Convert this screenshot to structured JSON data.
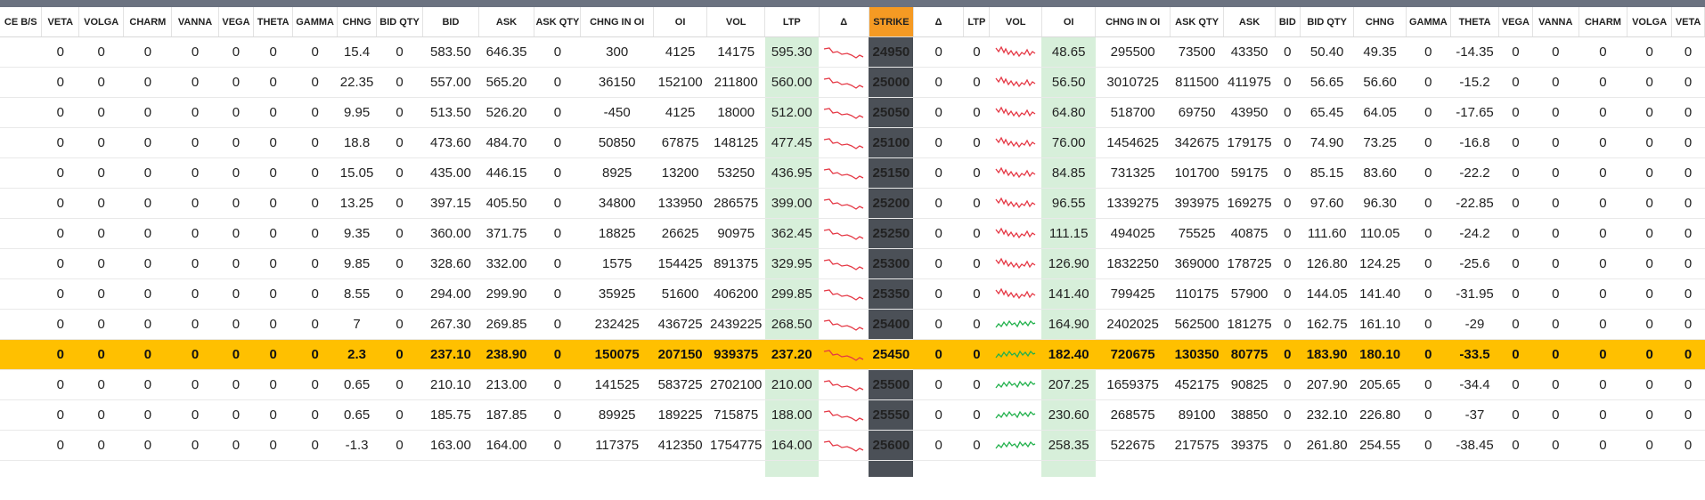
{
  "columns": [
    "CE B/S",
    "VETA",
    "VOLGA",
    "CHARM",
    "VANNA",
    "VEGA",
    "THETA",
    "GAMMA",
    "CHNG",
    "BID QTY",
    "BID",
    "ASK",
    "ASK QTY",
    "CHNG IN OI",
    "OI",
    "VOL",
    "LTP",
    "Δ",
    "STRIKE",
    "Δ",
    "LTP",
    "VOL",
    "OI",
    "CHNG IN OI",
    "ASK QTY",
    "ASK",
    "BID",
    "BID QTY",
    "CHNG",
    "GAMMA",
    "THETA",
    "VEGA",
    "VANNA",
    "CHARM",
    "VOLGA",
    "VETA"
  ],
  "colors": {
    "positive": "#1e8a3a",
    "negative": "#e53845",
    "atm_row": "#ffc000",
    "strike_header": "#f59a23",
    "strike_cell": "#4b5057",
    "ltp_highlight": "#d7efda",
    "spark_red": "#e53845",
    "spark_green": "#22b14c"
  },
  "rows": [
    {
      "strike": "24950",
      "atm": false,
      "ce": {
        "veta": "0",
        "volga": "0",
        "charm": "0",
        "vanna": "0",
        "vega": "0",
        "theta": "0",
        "gamma": "0",
        "chng": "15.4",
        "bid_qty": "0",
        "bid": "583.50",
        "ask": "646.35",
        "ask_qty": "0",
        "chng_oi": "300",
        "oi": "4125",
        "vol": "14175",
        "ltp": "595.30",
        "delta": "0",
        "trend": "down"
      },
      "pe": {
        "delta": "0",
        "ltp": "0",
        "trend": "down",
        "oi": "48.65",
        "chng_oi": "295500",
        "ask_qty": "73500",
        "ask": "43350",
        "bid": "0",
        "bid_qty": "50.40",
        "chng": "49.35",
        "gamma": "0",
        "theta": "-14.35",
        "vega": "0",
        "vanna": "0",
        "charm": "0",
        "volga": "0",
        "veta": "0"
      }
    },
    {
      "strike": "25000",
      "atm": false,
      "ce": {
        "veta": "0",
        "volga": "0",
        "charm": "0",
        "vanna": "0",
        "vega": "0",
        "theta": "0",
        "gamma": "0",
        "chng": "22.35",
        "bid_qty": "0",
        "bid": "557.00",
        "ask": "565.20",
        "ask_qty": "0",
        "chng_oi": "36150",
        "oi": "152100",
        "vol": "211800",
        "ltp": "560.00",
        "delta": "0",
        "trend": "down"
      },
      "pe": {
        "delta": "0",
        "ltp": "0",
        "trend": "down",
        "oi": "56.50",
        "chng_oi": "3010725",
        "ask_qty": "811500",
        "ask": "411975",
        "bid": "0",
        "bid_qty": "56.65",
        "chng": "56.60",
        "gamma": "0",
        "theta": "-15.2",
        "vega": "0",
        "vanna": "0",
        "charm": "0",
        "volga": "0",
        "veta": "0"
      }
    },
    {
      "strike": "25050",
      "atm": false,
      "ce": {
        "veta": "0",
        "volga": "0",
        "charm": "0",
        "vanna": "0",
        "vega": "0",
        "theta": "0",
        "gamma": "0",
        "chng": "9.95",
        "bid_qty": "0",
        "bid": "513.50",
        "ask": "526.20",
        "ask_qty": "0",
        "chng_oi": "-450",
        "oi": "4125",
        "vol": "18000",
        "ltp": "512.00",
        "delta": "0",
        "trend": "down"
      },
      "pe": {
        "delta": "0",
        "ltp": "0",
        "trend": "down",
        "oi": "64.80",
        "chng_oi": "518700",
        "ask_qty": "69750",
        "ask": "43950",
        "bid": "0",
        "bid_qty": "65.45",
        "chng": "64.05",
        "gamma": "0",
        "theta": "-17.65",
        "vega": "0",
        "vanna": "0",
        "charm": "0",
        "volga": "0",
        "veta": "0"
      }
    },
    {
      "strike": "25100",
      "atm": false,
      "ce": {
        "veta": "0",
        "volga": "0",
        "charm": "0",
        "vanna": "0",
        "vega": "0",
        "theta": "0",
        "gamma": "0",
        "chng": "18.8",
        "bid_qty": "0",
        "bid": "473.60",
        "ask": "484.70",
        "ask_qty": "0",
        "chng_oi": "50850",
        "oi": "67875",
        "vol": "148125",
        "ltp": "477.45",
        "delta": "0",
        "trend": "down"
      },
      "pe": {
        "delta": "0",
        "ltp": "0",
        "trend": "down",
        "oi": "76.00",
        "chng_oi": "1454625",
        "ask_qty": "342675",
        "ask": "179175",
        "bid": "0",
        "bid_qty": "74.90",
        "chng": "73.25",
        "gamma": "0",
        "theta": "-16.8",
        "vega": "0",
        "vanna": "0",
        "charm": "0",
        "volga": "0",
        "veta": "0"
      }
    },
    {
      "strike": "25150",
      "atm": false,
      "ce": {
        "veta": "0",
        "volga": "0",
        "charm": "0",
        "vanna": "0",
        "vega": "0",
        "theta": "0",
        "gamma": "0",
        "chng": "15.05",
        "bid_qty": "0",
        "bid": "435.00",
        "ask": "446.15",
        "ask_qty": "0",
        "chng_oi": "8925",
        "oi": "13200",
        "vol": "53250",
        "ltp": "436.95",
        "delta": "0",
        "trend": "down"
      },
      "pe": {
        "delta": "0",
        "ltp": "0",
        "trend": "down",
        "oi": "84.85",
        "chng_oi": "731325",
        "ask_qty": "101700",
        "ask": "59175",
        "bid": "0",
        "bid_qty": "85.15",
        "chng": "83.60",
        "gamma": "0",
        "theta": "-22.2",
        "vega": "0",
        "vanna": "0",
        "charm": "0",
        "volga": "0",
        "veta": "0"
      }
    },
    {
      "strike": "25200",
      "atm": false,
      "ce": {
        "veta": "0",
        "volga": "0",
        "charm": "0",
        "vanna": "0",
        "vega": "0",
        "theta": "0",
        "gamma": "0",
        "chng": "13.25",
        "bid_qty": "0",
        "bid": "397.15",
        "ask": "405.50",
        "ask_qty": "0",
        "chng_oi": "34800",
        "oi": "133950",
        "vol": "286575",
        "ltp": "399.00",
        "delta": "0",
        "trend": "down"
      },
      "pe": {
        "delta": "0",
        "ltp": "0",
        "trend": "down",
        "oi": "96.55",
        "chng_oi": "1339275",
        "ask_qty": "393975",
        "ask": "169275",
        "bid": "0",
        "bid_qty": "97.60",
        "chng": "96.30",
        "gamma": "0",
        "theta": "-22.85",
        "vega": "0",
        "vanna": "0",
        "charm": "0",
        "volga": "0",
        "veta": "0"
      }
    },
    {
      "strike": "25250",
      "atm": false,
      "ce": {
        "veta": "0",
        "volga": "0",
        "charm": "0",
        "vanna": "0",
        "vega": "0",
        "theta": "0",
        "gamma": "0",
        "chng": "9.35",
        "bid_qty": "0",
        "bid": "360.00",
        "ask": "371.75",
        "ask_qty": "0",
        "chng_oi": "18825",
        "oi": "26625",
        "vol": "90975",
        "ltp": "362.45",
        "delta": "0",
        "trend": "down"
      },
      "pe": {
        "delta": "0",
        "ltp": "0",
        "trend": "down",
        "oi": "111.15",
        "chng_oi": "494025",
        "ask_qty": "75525",
        "ask": "40875",
        "bid": "0",
        "bid_qty": "111.60",
        "chng": "110.05",
        "gamma": "0",
        "theta": "-24.2",
        "vega": "0",
        "vanna": "0",
        "charm": "0",
        "volga": "0",
        "veta": "0"
      }
    },
    {
      "strike": "25300",
      "atm": false,
      "ce": {
        "veta": "0",
        "volga": "0",
        "charm": "0",
        "vanna": "0",
        "vega": "0",
        "theta": "0",
        "gamma": "0",
        "chng": "9.85",
        "bid_qty": "0",
        "bid": "328.60",
        "ask": "332.00",
        "ask_qty": "0",
        "chng_oi": "1575",
        "oi": "154425",
        "vol": "891375",
        "ltp": "329.95",
        "delta": "0",
        "trend": "down"
      },
      "pe": {
        "delta": "0",
        "ltp": "0",
        "trend": "down",
        "oi": "126.90",
        "chng_oi": "1832250",
        "ask_qty": "369000",
        "ask": "178725",
        "bid": "0",
        "bid_qty": "126.80",
        "chng": "124.25",
        "gamma": "0",
        "theta": "-25.6",
        "vega": "0",
        "vanna": "0",
        "charm": "0",
        "volga": "0",
        "veta": "0"
      }
    },
    {
      "strike": "25350",
      "atm": false,
      "ce": {
        "veta": "0",
        "volga": "0",
        "charm": "0",
        "vanna": "0",
        "vega": "0",
        "theta": "0",
        "gamma": "0",
        "chng": "8.55",
        "bid_qty": "0",
        "bid": "294.00",
        "ask": "299.90",
        "ask_qty": "0",
        "chng_oi": "35925",
        "oi": "51600",
        "vol": "406200",
        "ltp": "299.85",
        "delta": "0",
        "trend": "down"
      },
      "pe": {
        "delta": "0",
        "ltp": "0",
        "trend": "down",
        "oi": "141.40",
        "chng_oi": "799425",
        "ask_qty": "110175",
        "ask": "57900",
        "bid": "0",
        "bid_qty": "144.05",
        "chng": "141.40",
        "gamma": "0",
        "theta": "-31.95",
        "vega": "0",
        "vanna": "0",
        "charm": "0",
        "volga": "0",
        "veta": "0"
      }
    },
    {
      "strike": "25400",
      "atm": false,
      "ce": {
        "veta": "0",
        "volga": "0",
        "charm": "0",
        "vanna": "0",
        "vega": "0",
        "theta": "0",
        "gamma": "0",
        "chng": "7",
        "bid_qty": "0",
        "bid": "267.30",
        "ask": "269.85",
        "ask_qty": "0",
        "chng_oi": "232425",
        "oi": "436725",
        "vol": "2439225",
        "ltp": "268.50",
        "delta": "0",
        "trend": "down"
      },
      "pe": {
        "delta": "0",
        "ltp": "0",
        "trend": "up",
        "oi": "164.90",
        "chng_oi": "2402025",
        "ask_qty": "562500",
        "ask": "181275",
        "bid": "0",
        "bid_qty": "162.75",
        "chng": "161.10",
        "gamma": "0",
        "theta": "-29",
        "vega": "0",
        "vanna": "0",
        "charm": "0",
        "volga": "0",
        "veta": "0"
      }
    },
    {
      "strike": "25450",
      "atm": true,
      "ce": {
        "veta": "0",
        "volga": "0",
        "charm": "0",
        "vanna": "0",
        "vega": "0",
        "theta": "0",
        "gamma": "0",
        "chng": "2.3",
        "bid_qty": "0",
        "bid": "237.10",
        "ask": "238.90",
        "ask_qty": "0",
        "chng_oi": "150075",
        "oi": "207150",
        "vol": "939375",
        "ltp": "237.20",
        "delta": "0",
        "trend": "down"
      },
      "pe": {
        "delta": "0",
        "ltp": "0",
        "trend": "up",
        "oi": "182.40",
        "chng_oi": "720675",
        "ask_qty": "130350",
        "ask": "80775",
        "bid": "0",
        "bid_qty": "183.90",
        "chng": "180.10",
        "gamma": "0",
        "theta": "-33.5",
        "vega": "0",
        "vanna": "0",
        "charm": "0",
        "volga": "0",
        "veta": "0"
      }
    },
    {
      "strike": "25500",
      "atm": false,
      "ce": {
        "veta": "0",
        "volga": "0",
        "charm": "0",
        "vanna": "0",
        "vega": "0",
        "theta": "0",
        "gamma": "0",
        "chng": "0.65",
        "bid_qty": "0",
        "bid": "210.10",
        "ask": "213.00",
        "ask_qty": "0",
        "chng_oi": "141525",
        "oi": "583725",
        "vol": "2702100",
        "ltp": "210.00",
        "delta": "0",
        "trend": "down"
      },
      "pe": {
        "delta": "0",
        "ltp": "0",
        "trend": "up",
        "oi": "207.25",
        "chng_oi": "1659375",
        "ask_qty": "452175",
        "ask": "90825",
        "bid": "0",
        "bid_qty": "207.90",
        "chng": "205.65",
        "gamma": "0",
        "theta": "-34.4",
        "vega": "0",
        "vanna": "0",
        "charm": "0",
        "volga": "0",
        "veta": "0"
      }
    },
    {
      "strike": "25550",
      "atm": false,
      "ce": {
        "veta": "0",
        "volga": "0",
        "charm": "0",
        "vanna": "0",
        "vega": "0",
        "theta": "0",
        "gamma": "0",
        "chng": "0.65",
        "bid_qty": "0",
        "bid": "185.75",
        "ask": "187.85",
        "ask_qty": "0",
        "chng_oi": "89925",
        "oi": "189225",
        "vol": "715875",
        "ltp": "188.00",
        "delta": "0",
        "trend": "down"
      },
      "pe": {
        "delta": "0",
        "ltp": "0",
        "trend": "up",
        "oi": "230.60",
        "chng_oi": "268575",
        "ask_qty": "89100",
        "ask": "38850",
        "bid": "0",
        "bid_qty": "232.10",
        "chng": "226.80",
        "gamma": "0",
        "theta": "-37",
        "vega": "0",
        "vanna": "0",
        "charm": "0",
        "volga": "0",
        "veta": "0"
      }
    },
    {
      "strike": "25600",
      "atm": false,
      "ce": {
        "veta": "0",
        "volga": "0",
        "charm": "0",
        "vanna": "0",
        "vega": "0",
        "theta": "0",
        "gamma": "0",
        "chng": "-1.3",
        "bid_qty": "0",
        "bid": "163.00",
        "ask": "164.00",
        "ask_qty": "0",
        "chng_oi": "117375",
        "oi": "412350",
        "vol": "1754775",
        "ltp": "164.00",
        "delta": "0",
        "trend": "down"
      },
      "pe": {
        "delta": "0",
        "ltp": "0",
        "trend": "up",
        "oi": "258.35",
        "chng_oi": "522675",
        "ask_qty": "217575",
        "ask": "39375",
        "bid": "0",
        "bid_qty": "261.80",
        "chng": "254.55",
        "gamma": "0",
        "theta": "-38.45",
        "vega": "0",
        "vanna": "0",
        "charm": "0",
        "volga": "0",
        "veta": "0"
      }
    }
  ]
}
